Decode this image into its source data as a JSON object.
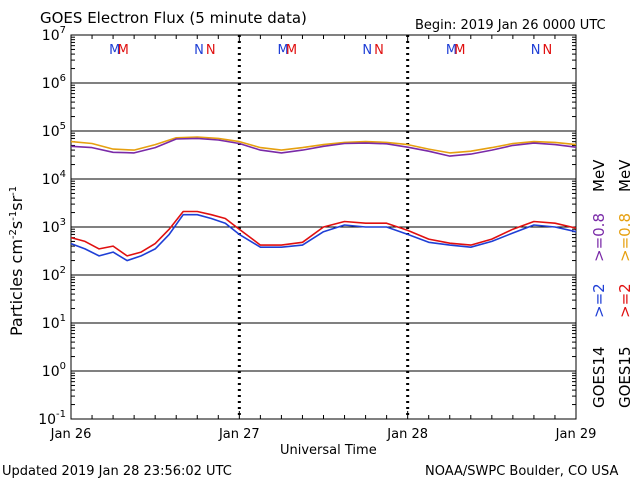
{
  "title": "GOES Electron Flux (5 minute data)",
  "begin_label": "Begin: 2019 Jan 26 0000 UTC",
  "xlabel": "Universal Time",
  "ylabel_main": "Particles cm",
  "ylabel_sup1": "-2",
  "ylabel_mid": "s",
  "ylabel_sup2": "-1",
  "ylabel_mid2": "sr",
  "ylabel_sup3": "-1",
  "updated": "Updated 2019 Jan 28 23:56:02 UTC",
  "credit": "NOAA/SWPC Boulder, CO USA",
  "legend": {
    "g14_label": "GOES14",
    "g15_label": "GOES15",
    "g14_2mev": ">=2",
    "g15_2mev": ">=2",
    "g14_08mev": ">=0.8",
    "g15_08mev": ">=0.8",
    "unit1": "MeV",
    "unit2": "MeV"
  },
  "colors": {
    "g14_2mev": "#1f3fd6",
    "g15_2mev": "#e01010",
    "g14_08mev": "#7a2aa8",
    "g15_08mev": "#e6a010",
    "threshold": "#000000"
  },
  "markers": [
    {
      "text": "M",
      "color": "#1f3fd6",
      "day": 0.26
    },
    {
      "text": "M",
      "color": "#e01010",
      "day": 0.31
    },
    {
      "text": "N",
      "color": "#1f3fd6",
      "day": 0.76
    },
    {
      "text": "N",
      "color": "#e01010",
      "day": 0.83
    },
    {
      "text": "M",
      "color": "#1f3fd6",
      "day": 1.26
    },
    {
      "text": "M",
      "color": "#e01010",
      "day": 1.31
    },
    {
      "text": "N",
      "color": "#1f3fd6",
      "day": 1.76
    },
    {
      "text": "N",
      "color": "#e01010",
      "day": 1.83
    },
    {
      "text": "M",
      "color": "#1f3fd6",
      "day": 2.26
    },
    {
      "text": "M",
      "color": "#e01010",
      "day": 2.31
    },
    {
      "text": "N",
      "color": "#1f3fd6",
      "day": 2.76
    },
    {
      "text": "N",
      "color": "#e01010",
      "day": 2.83
    }
  ],
  "chart_data": {
    "type": "line",
    "y_scale": "log",
    "ylim": [
      0.1,
      10000000
    ],
    "y_ticks": [
      {
        "base": "10",
        "exp": "7"
      },
      {
        "base": "10",
        "exp": "6"
      },
      {
        "base": "10",
        "exp": "5"
      },
      {
        "base": "10",
        "exp": "4"
      },
      {
        "base": "10",
        "exp": "3"
      },
      {
        "base": "10",
        "exp": "2"
      },
      {
        "base": "10",
        "exp": "1"
      },
      {
        "base": "10",
        "exp": "0"
      },
      {
        "base": "10",
        "exp": "-1"
      }
    ],
    "x_ticks": [
      "Jan 26",
      "Jan 27",
      "Jan 28",
      "Jan 29"
    ],
    "xlim": [
      "2019-01-26",
      "2019-01-29"
    ],
    "threshold": 1000,
    "series": [
      {
        "key": "g15_08mev",
        "x": [
          "2019-01-26 00:00",
          "2019-01-26 03:00",
          "2019-01-26 06:00",
          "2019-01-26 09:00",
          "2019-01-26 12:00",
          "2019-01-26 15:00",
          "2019-01-26 18:00",
          "2019-01-26 21:00",
          "2019-01-27 00:00",
          "2019-01-27 03:00",
          "2019-01-27 06:00",
          "2019-01-27 09:00",
          "2019-01-27 12:00",
          "2019-01-27 15:00",
          "2019-01-27 18:00",
          "2019-01-27 21:00",
          "2019-01-28 00:00",
          "2019-01-28 03:00",
          "2019-01-28 06:00",
          "2019-01-28 09:00",
          "2019-01-28 12:00",
          "2019-01-28 15:00",
          "2019-01-28 18:00",
          "2019-01-28 21:00",
          "2019-01-29 00:00"
        ],
        "y": [
          60000,
          55000,
          42000,
          40000,
          52000,
          72000,
          75000,
          70000,
          60000,
          45000,
          40000,
          45000,
          52000,
          58000,
          60000,
          58000,
          52000,
          42000,
          35000,
          38000,
          45000,
          55000,
          60000,
          58000,
          52000
        ]
      },
      {
        "key": "g14_08mev",
        "x": [
          "2019-01-26 00:00",
          "2019-01-26 03:00",
          "2019-01-26 06:00",
          "2019-01-26 09:00",
          "2019-01-26 12:00",
          "2019-01-26 15:00",
          "2019-01-26 18:00",
          "2019-01-26 21:00",
          "2019-01-27 00:00",
          "2019-01-27 03:00",
          "2019-01-27 06:00",
          "2019-01-27 09:00",
          "2019-01-27 12:00",
          "2019-01-27 15:00",
          "2019-01-27 18:00",
          "2019-01-27 21:00",
          "2019-01-28 00:00",
          "2019-01-28 03:00",
          "2019-01-28 06:00",
          "2019-01-28 09:00",
          "2019-01-28 12:00",
          "2019-01-28 15:00",
          "2019-01-28 18:00",
          "2019-01-28 21:00",
          "2019-01-29 00:00"
        ],
        "y": [
          48000,
          45000,
          36000,
          35000,
          45000,
          68000,
          70000,
          65000,
          55000,
          40000,
          35000,
          40000,
          48000,
          55000,
          56000,
          54000,
          46000,
          38000,
          30000,
          33000,
          40000,
          50000,
          56000,
          52000,
          46000
        ]
      },
      {
        "key": "g14_2mev",
        "x": [
          "2019-01-26 00:00",
          "2019-01-26 02:00",
          "2019-01-26 04:00",
          "2019-01-26 06:00",
          "2019-01-26 08:00",
          "2019-01-26 10:00",
          "2019-01-26 12:00",
          "2019-01-26 14:00",
          "2019-01-26 16:00",
          "2019-01-26 18:00",
          "2019-01-26 20:00",
          "2019-01-26 22:00",
          "2019-01-27 00:00",
          "2019-01-27 03:00",
          "2019-01-27 06:00",
          "2019-01-27 09:00",
          "2019-01-27 12:00",
          "2019-01-27 15:00",
          "2019-01-27 18:00",
          "2019-01-27 21:00",
          "2019-01-28 00:00",
          "2019-01-28 03:00",
          "2019-01-28 06:00",
          "2019-01-28 09:00",
          "2019-01-28 12:00",
          "2019-01-28 15:00",
          "2019-01-28 18:00",
          "2019-01-28 21:00",
          "2019-01-29 00:00"
        ],
        "y": [
          450,
          350,
          250,
          300,
          200,
          250,
          350,
          700,
          1800,
          1800,
          1500,
          1200,
          700,
          380,
          380,
          420,
          800,
          1100,
          1000,
          1000,
          700,
          480,
          420,
          380,
          500,
          750,
          1100,
          1000,
          800
        ]
      },
      {
        "key": "g15_2mev",
        "x": [
          "2019-01-26 00:00",
          "2019-01-26 02:00",
          "2019-01-26 04:00",
          "2019-01-26 06:00",
          "2019-01-26 08:00",
          "2019-01-26 10:00",
          "2019-01-26 12:00",
          "2019-01-26 14:00",
          "2019-01-26 16:00",
          "2019-01-26 18:00",
          "2019-01-26 20:00",
          "2019-01-26 22:00",
          "2019-01-27 00:00",
          "2019-01-27 03:00",
          "2019-01-27 06:00",
          "2019-01-27 09:00",
          "2019-01-27 12:00",
          "2019-01-27 15:00",
          "2019-01-27 18:00",
          "2019-01-27 21:00",
          "2019-01-28 00:00",
          "2019-01-28 03:00",
          "2019-01-28 06:00",
          "2019-01-28 09:00",
          "2019-01-28 12:00",
          "2019-01-28 15:00",
          "2019-01-28 18:00",
          "2019-01-28 21:00",
          "2019-01-29 00:00"
        ],
        "y": [
          600,
          500,
          350,
          400,
          250,
          300,
          450,
          900,
          2100,
          2100,
          1800,
          1500,
          900,
          420,
          420,
          480,
          1000,
          1300,
          1200,
          1200,
          850,
          560,
          460,
          420,
          560,
          900,
          1300,
          1200,
          950
        ]
      }
    ]
  }
}
